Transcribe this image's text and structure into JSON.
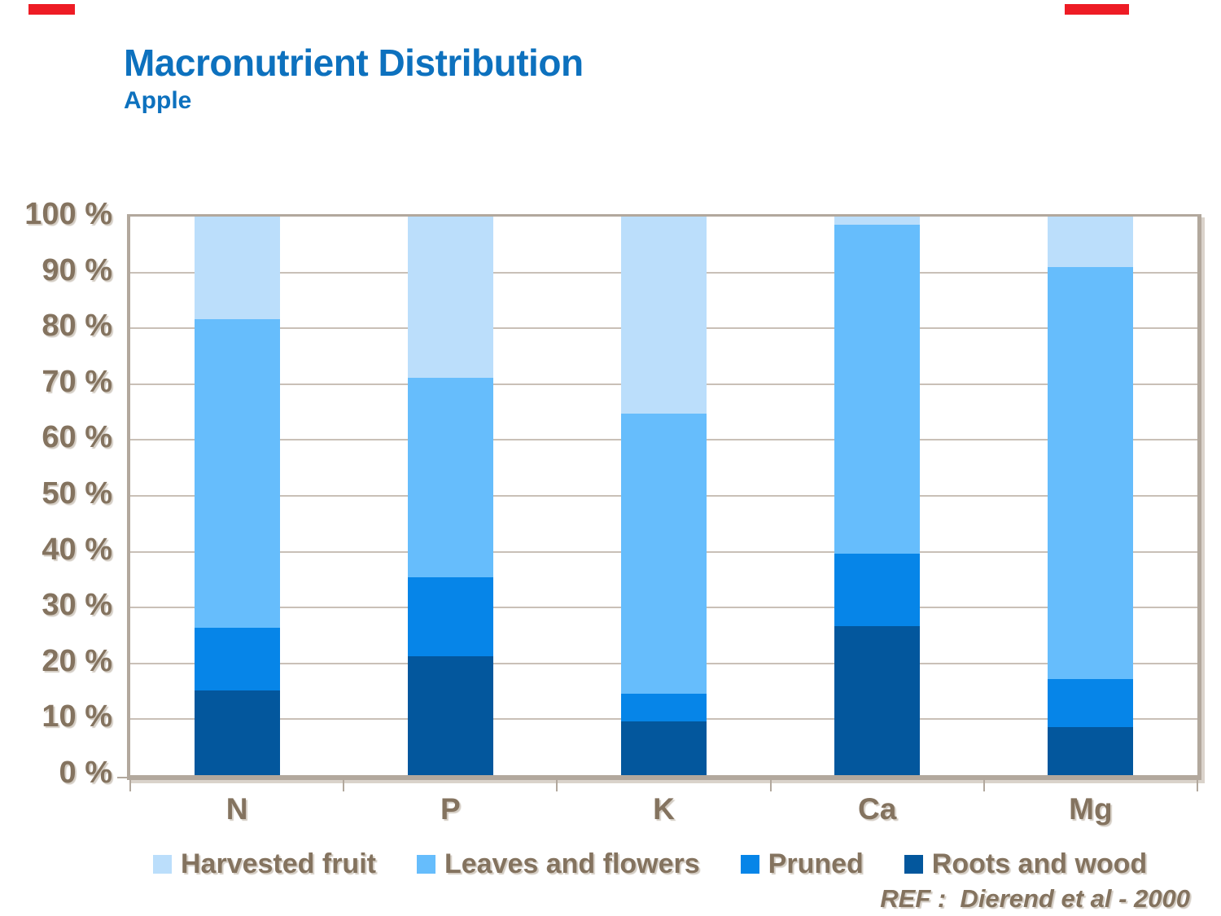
{
  "slide": {
    "title": "Macronutrient Distribution",
    "subtitle": "Apple",
    "ref_note": "REF :  Dierend et al - 2000",
    "title_color": "#0D71BE",
    "text_color": "#84735F",
    "accent_red": "#EE1C25",
    "frame_color": "#B2A89D",
    "gridline_color": "#C9C0B7"
  },
  "chart_data": {
    "type": "bar",
    "variant": "stacked-100",
    "title": "Macronutrient Distribution",
    "subtitle": "Apple",
    "categories": [
      "N",
      "P",
      "K",
      "Ca",
      "Mg"
    ],
    "series": [
      {
        "name": "Harvested fruit",
        "color": "#BBDEFB",
        "values": [
          18.4,
          28.8,
          35.3,
          1.5,
          9.0
        ]
      },
      {
        "name": "Leaves and flowers",
        "color": "#66BDFC",
        "values": [
          55.2,
          35.8,
          50.1,
          58.9,
          73.8
        ]
      },
      {
        "name": "Pruned",
        "color": "#0685E8",
        "values": [
          11.3,
          14.1,
          5.0,
          12.9,
          8.6
        ]
      },
      {
        "name": "Roots and wood",
        "color": "#03579D",
        "values": [
          15.1,
          21.3,
          9.6,
          26.7,
          8.6
        ]
      }
    ],
    "y_axis": {
      "min": 0,
      "max": 100,
      "step": 10,
      "ticks": [
        "0 %",
        "10 %",
        "20 %",
        "30 %",
        "40 %",
        "50 %",
        "60 %",
        "70 %",
        "80 %",
        "90 %",
        "100 %"
      ]
    },
    "grid": true,
    "legend_position": "bottom"
  }
}
